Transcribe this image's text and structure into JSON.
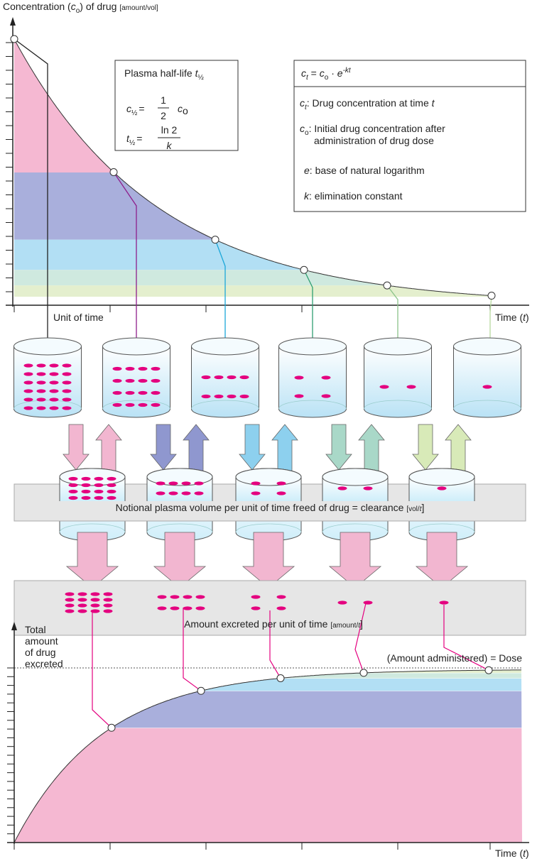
{
  "top_chart": {
    "y_label": {
      "pre": "Concentration (",
      "var": "c",
      "sub": "o",
      "post": ") of drug ",
      "unit": "[amount/vol]"
    },
    "unit_of_time": "Unit of time",
    "x_label": {
      "pre": "Time (",
      "var": "t",
      "post": ")"
    }
  },
  "half_life_box": {
    "title": "Plasma half-life ",
    "title_var": "t",
    "title_sub": "½",
    "eq1": {
      "lhs_var": "c",
      "lhs_sub": "½",
      "eq": "=",
      "num": "1",
      "den": "2",
      "rhs_var": "c",
      "rhs_sub": "o"
    },
    "eq2": {
      "lhs_var": "t",
      "lhs_sub": "½",
      "eq": "=",
      "num": "ln 2",
      "den": "k"
    }
  },
  "formula_box": {
    "header": {
      "lhs_var": "c",
      "lhs_sub": "t",
      "eq": " = ",
      "c": "c",
      "c_sub": "o",
      "dot": " · ",
      "e": "e",
      "exp": "-kt"
    },
    "rows": [
      {
        "var": "c",
        "sub": "t",
        "text": ": Drug concentration at time ",
        "text_var": "t"
      },
      {
        "var": "c",
        "sub": "o",
        "text": ": Initial drug concentration after",
        "text2": "administration of drug dose"
      },
      {
        "var": "e",
        "text": ": base of natural logarithm"
      },
      {
        "var": "k",
        "text": ": elimination constant"
      }
    ]
  },
  "clearance_label": {
    "text": "Notional plasma volume per unit of time freed of drug = clearance ",
    "unit": "[vol/",
    "unit_var": "t",
    "close": "]"
  },
  "excreted_label": {
    "text": "Amount excreted per unit of time ",
    "unit": "[amount/",
    "unit_var": "t",
    "close": "]"
  },
  "bottom_chart": {
    "y_label": [
      "Total",
      "amount",
      "of drug",
      "excreted"
    ],
    "dose_label": "(Amount administered) = Dose",
    "x_label": {
      "pre": "Time (",
      "var": "t",
      "post": ")"
    }
  }
}
